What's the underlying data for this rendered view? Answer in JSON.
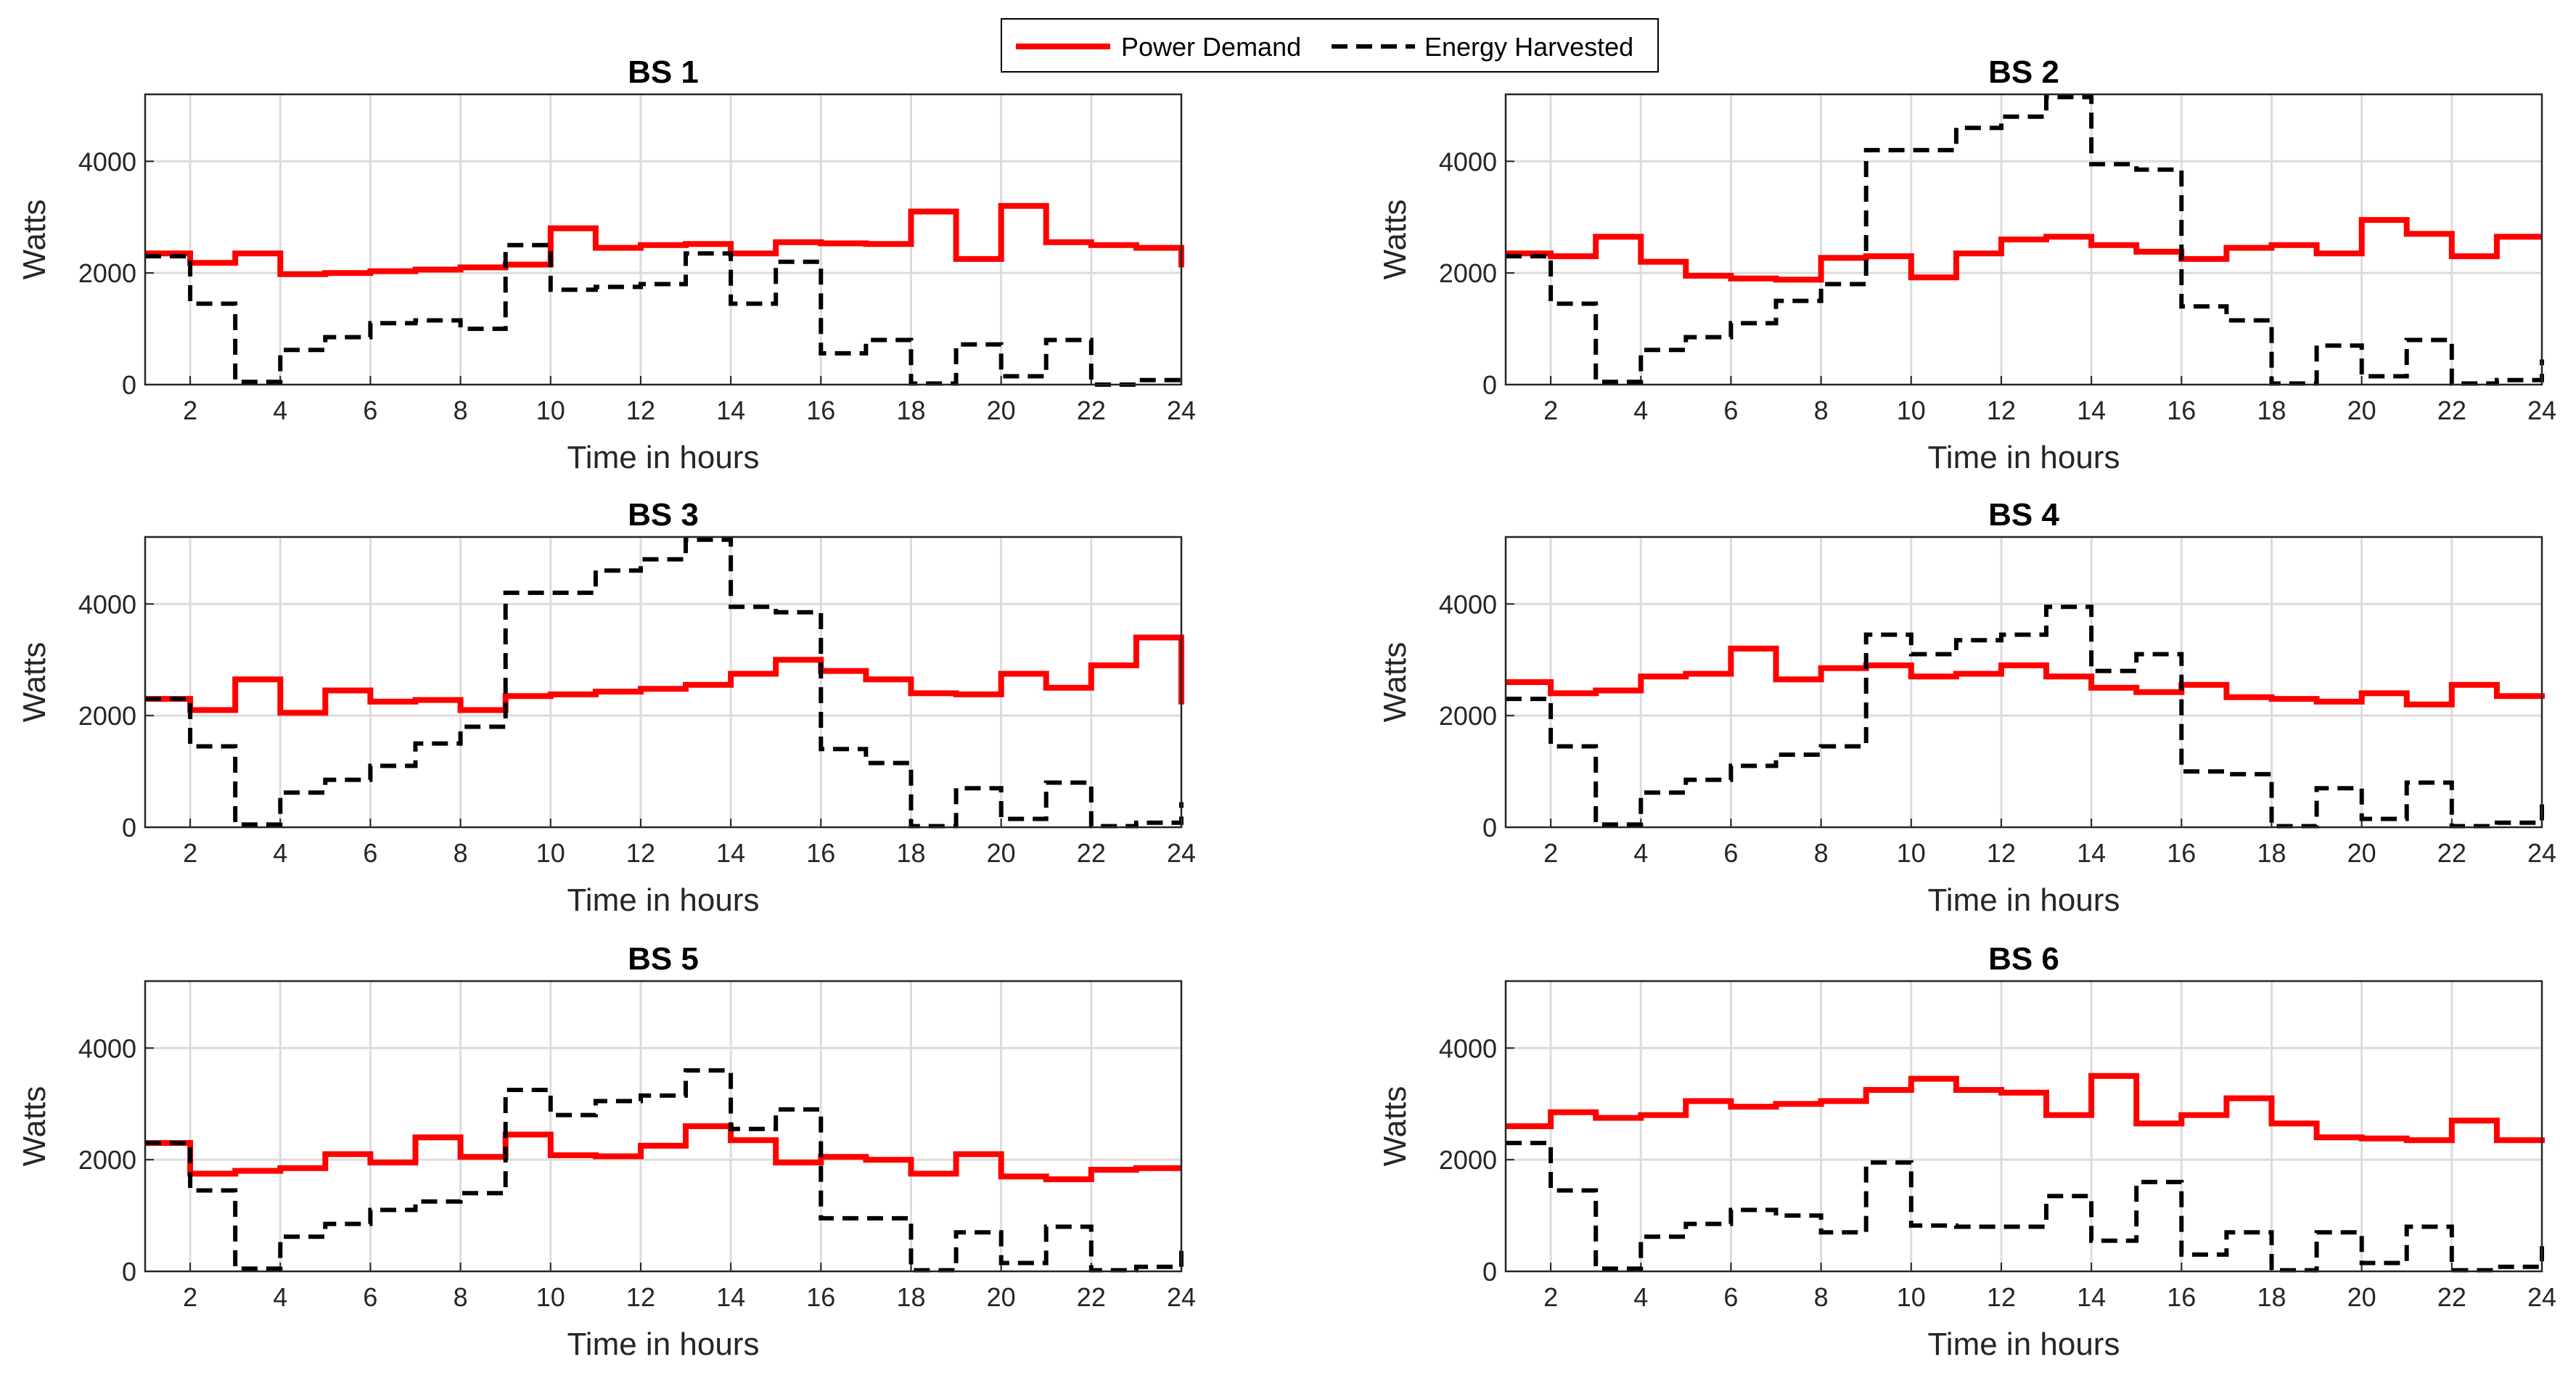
{
  "legend": {
    "power_label": "Power Demand",
    "energy_label": "Energy Harvested"
  },
  "colors": {
    "power": "#ff0000",
    "energy": "#000000",
    "grid": "#dcdcdc",
    "axis": "#262626"
  },
  "chart_data": [
    {
      "type": "line",
      "step": true,
      "title": "BS 1",
      "xlabel": "Time in hours",
      "ylabel": "Watts",
      "xlim": [
        1,
        24
      ],
      "ylim": [
        0,
        5200
      ],
      "xticks": [
        2,
        4,
        6,
        8,
        10,
        12,
        14,
        16,
        18,
        20,
        22,
        24
      ],
      "yticks": [
        0,
        2000,
        4000
      ],
      "x": [
        1,
        2,
        3,
        4,
        5,
        6,
        7,
        8,
        9,
        10,
        11,
        12,
        13,
        14,
        15,
        16,
        17,
        18,
        19,
        20,
        21,
        22,
        23,
        24
      ],
      "series": [
        {
          "name": "Power Demand",
          "values": [
            2350,
            2180,
            2350,
            1980,
            2000,
            2030,
            2060,
            2100,
            2150,
            2800,
            2450,
            2500,
            2520,
            2350,
            2550,
            2530,
            2520,
            3100,
            2250,
            3200,
            2550,
            2500,
            2450,
            2100
          ]
        },
        {
          "name": "Energy Harvested",
          "values": [
            2300,
            1450,
            50,
            620,
            850,
            1100,
            1150,
            1000,
            2500,
            1700,
            1750,
            1800,
            2350,
            1450,
            2200,
            560,
            800,
            20,
            720,
            150,
            800,
            0,
            80,
            100
          ]
        }
      ]
    },
    {
      "type": "line",
      "step": true,
      "title": "BS 2",
      "xlabel": "Time in hours",
      "ylabel": "Watts",
      "xlim": [
        1,
        24
      ],
      "ylim": [
        0,
        5200
      ],
      "xticks": [
        2,
        4,
        6,
        8,
        10,
        12,
        14,
        16,
        18,
        20,
        22,
        24
      ],
      "yticks": [
        0,
        2000,
        4000
      ],
      "x": [
        1,
        2,
        3,
        4,
        5,
        6,
        7,
        8,
        9,
        10,
        11,
        12,
        13,
        14,
        15,
        16,
        17,
        18,
        19,
        20,
        21,
        22,
        23,
        24
      ],
      "series": [
        {
          "name": "Power Demand",
          "values": [
            2350,
            2300,
            2650,
            2200,
            1950,
            1900,
            1880,
            2270,
            2300,
            1920,
            2350,
            2600,
            2650,
            2500,
            2380,
            2250,
            2450,
            2500,
            2350,
            2950,
            2700,
            2300,
            2650,
            2650
          ]
        },
        {
          "name": "Energy Harvested",
          "values": [
            2300,
            1450,
            50,
            620,
            850,
            1100,
            1500,
            1800,
            4200,
            4200,
            4600,
            4800,
            5150,
            3950,
            3850,
            1400,
            1150,
            20,
            700,
            150,
            800,
            20,
            80,
            450
          ]
        }
      ]
    },
    {
      "type": "line",
      "step": true,
      "title": "BS 3",
      "xlabel": "Time in hours",
      "ylabel": "Watts",
      "xlim": [
        1,
        24
      ],
      "ylim": [
        0,
        5200
      ],
      "xticks": [
        2,
        4,
        6,
        8,
        10,
        12,
        14,
        16,
        18,
        20,
        22,
        24
      ],
      "yticks": [
        0,
        2000,
        4000
      ],
      "x": [
        1,
        2,
        3,
        4,
        5,
        6,
        7,
        8,
        9,
        10,
        11,
        12,
        13,
        14,
        15,
        16,
        17,
        18,
        19,
        20,
        21,
        22,
        23,
        24
      ],
      "series": [
        {
          "name": "Power Demand",
          "values": [
            2300,
            2100,
            2650,
            2050,
            2450,
            2250,
            2280,
            2100,
            2350,
            2380,
            2430,
            2480,
            2550,
            2750,
            3000,
            2800,
            2650,
            2400,
            2380,
            2750,
            2500,
            2900,
            3400,
            2200
          ]
        },
        {
          "name": "Energy Harvested",
          "values": [
            2300,
            1450,
            50,
            620,
            850,
            1100,
            1500,
            1800,
            4200,
            4200,
            4600,
            4800,
            5150,
            3950,
            3850,
            1400,
            1150,
            20,
            700,
            150,
            800,
            20,
            80,
            450
          ]
        }
      ]
    },
    {
      "type": "line",
      "step": true,
      "title": "BS 4",
      "xlabel": "Time in hours",
      "ylabel": "Watts",
      "xlim": [
        1,
        24
      ],
      "ylim": [
        0,
        5200
      ],
      "xticks": [
        2,
        4,
        6,
        8,
        10,
        12,
        14,
        16,
        18,
        20,
        22,
        24
      ],
      "yticks": [
        0,
        2000,
        4000
      ],
      "x": [
        1,
        2,
        3,
        4,
        5,
        6,
        7,
        8,
        9,
        10,
        11,
        12,
        13,
        14,
        15,
        16,
        17,
        18,
        19,
        20,
        21,
        22,
        23,
        24
      ],
      "series": [
        {
          "name": "Power Demand",
          "values": [
            2600,
            2400,
            2450,
            2700,
            2750,
            3200,
            2650,
            2850,
            2900,
            2700,
            2750,
            2900,
            2700,
            2500,
            2420,
            2550,
            2330,
            2300,
            2250,
            2400,
            2200,
            2550,
            2350,
            2300
          ]
        },
        {
          "name": "Energy Harvested",
          "values": [
            2300,
            1450,
            50,
            620,
            850,
            1100,
            1300,
            1450,
            3450,
            3100,
            3350,
            3450,
            3950,
            2800,
            3100,
            1000,
            950,
            20,
            700,
            150,
            800,
            20,
            80,
            450
          ]
        }
      ]
    },
    {
      "type": "line",
      "step": true,
      "title": "BS 5",
      "xlabel": "Time in hours",
      "ylabel": "Watts",
      "xlim": [
        1,
        24
      ],
      "ylim": [
        0,
        5200
      ],
      "xticks": [
        2,
        4,
        6,
        8,
        10,
        12,
        14,
        16,
        18,
        20,
        22,
        24
      ],
      "yticks": [
        0,
        2000,
        4000
      ],
      "x": [
        1,
        2,
        3,
        4,
        5,
        6,
        7,
        8,
        9,
        10,
        11,
        12,
        13,
        14,
        15,
        16,
        17,
        18,
        19,
        20,
        21,
        22,
        23,
        24
      ],
      "series": [
        {
          "name": "Power Demand",
          "values": [
            2300,
            1750,
            1800,
            1850,
            2100,
            1950,
            2400,
            2050,
            2450,
            2080,
            2060,
            2250,
            2600,
            2350,
            1950,
            2050,
            2000,
            1750,
            2100,
            1700,
            1650,
            1820,
            1850,
            1850
          ]
        },
        {
          "name": "Energy Harvested",
          "values": [
            2300,
            1450,
            50,
            620,
            850,
            1100,
            1250,
            1400,
            3250,
            2800,
            3050,
            3150,
            3600,
            2550,
            2900,
            950,
            950,
            20,
            700,
            150,
            800,
            20,
            80,
            450
          ]
        }
      ]
    },
    {
      "type": "line",
      "step": true,
      "title": "BS 6",
      "xlabel": "Time in hours",
      "ylabel": "Watts",
      "xlim": [
        1,
        24
      ],
      "ylim": [
        0,
        5200
      ],
      "xticks": [
        2,
        4,
        6,
        8,
        10,
        12,
        14,
        16,
        18,
        20,
        22,
        24
      ],
      "yticks": [
        0,
        2000,
        4000
      ],
      "x": [
        1,
        2,
        3,
        4,
        5,
        6,
        7,
        8,
        9,
        10,
        11,
        12,
        13,
        14,
        15,
        16,
        17,
        18,
        19,
        20,
        21,
        22,
        23,
        24
      ],
      "series": [
        {
          "name": "Power Demand",
          "values": [
            2600,
            2850,
            2750,
            2800,
            3050,
            2950,
            3000,
            3050,
            3250,
            3450,
            3250,
            3200,
            2800,
            3500,
            2650,
            2800,
            3100,
            2650,
            2400,
            2380,
            2350,
            2700,
            2350,
            2400
          ]
        },
        {
          "name": "Energy Harvested",
          "values": [
            2300,
            1450,
            50,
            620,
            850,
            1100,
            1000,
            700,
            1950,
            820,
            800,
            800,
            1350,
            550,
            1600,
            300,
            700,
            20,
            700,
            150,
            800,
            20,
            80,
            450
          ]
        }
      ]
    }
  ]
}
